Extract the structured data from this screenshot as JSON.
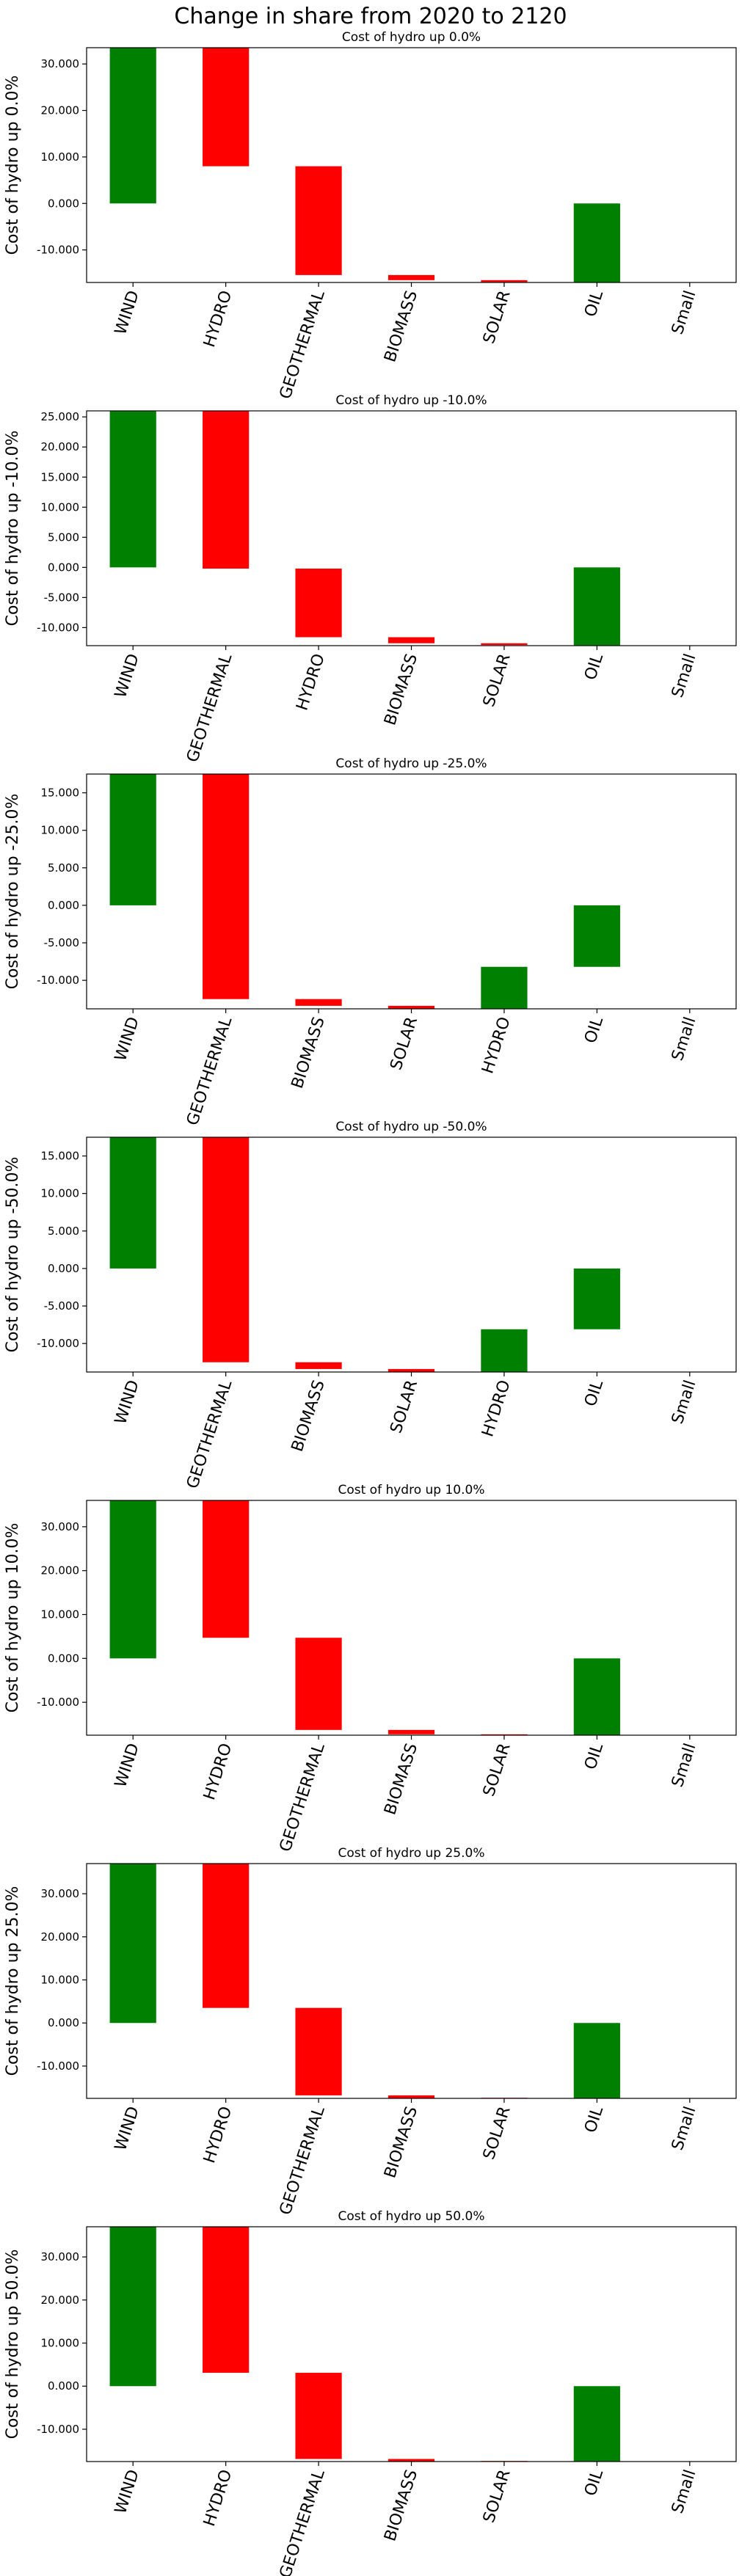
{
  "figure": {
    "suptitle": "Change in share from 2020 to 2120"
  },
  "colors": {
    "increase": "#008000",
    "decrease": "#ff0000"
  },
  "chart_data": [
    {
      "type": "bar",
      "title": "Cost of hydro up 0.0%",
      "ylabel": "Cost of hydro up 0.0%",
      "ylim": [
        -17000,
        33500
      ],
      "yticks": [
        -10000,
        0,
        10000,
        20000,
        30000
      ],
      "ytick_labels": [
        "-10.000",
        "0.000",
        "10.000",
        "20.000",
        "30.000"
      ],
      "categories": [
        "WIND",
        "HYDRO",
        "GEOTHERMAL",
        "BIOMASS",
        "SOLAR",
        "OIL",
        "Small"
      ],
      "bars": [
        {
          "bottom": 0,
          "top": 33500,
          "sign": "increase"
        },
        {
          "bottom": 8000,
          "top": 33500,
          "sign": "decrease"
        },
        {
          "bottom": -15400,
          "top": 8000,
          "sign": "decrease"
        },
        {
          "bottom": -16500,
          "top": -15400,
          "sign": "decrease"
        },
        {
          "bottom": -16900,
          "top": -16500,
          "sign": "decrease"
        },
        {
          "bottom": -17000,
          "top": 0,
          "sign": "increase"
        },
        null
      ]
    },
    {
      "type": "bar",
      "title": "Cost of hydro up -10.0%",
      "ylabel": "Cost of hydro up -10.0%",
      "ylim": [
        -13000,
        26000
      ],
      "yticks": [
        -10000,
        -5000,
        0,
        5000,
        10000,
        15000,
        20000,
        25000
      ],
      "ytick_labels": [
        "-10.000",
        "-5.000",
        "0.000",
        "5.000",
        "10.000",
        "15.000",
        "20.000",
        "25.000"
      ],
      "categories": [
        "WIND",
        "GEOTHERMAL",
        "HYDRO",
        "BIOMASS",
        "SOLAR",
        "OIL",
        "Small"
      ],
      "bars": [
        {
          "bottom": 0,
          "top": 26000,
          "sign": "increase"
        },
        {
          "bottom": -200,
          "top": 26000,
          "sign": "decrease"
        },
        {
          "bottom": -11600,
          "top": -200,
          "sign": "decrease"
        },
        {
          "bottom": -12600,
          "top": -11600,
          "sign": "decrease"
        },
        {
          "bottom": -12900,
          "top": -12600,
          "sign": "decrease"
        },
        {
          "bottom": -13000,
          "top": 0,
          "sign": "increase"
        },
        null
      ]
    },
    {
      "type": "bar",
      "title": "Cost of hydro up -25.0%",
      "ylabel": "Cost of hydro up -25.0%",
      "ylim": [
        -13800,
        17500
      ],
      "yticks": [
        -10000,
        -5000,
        0,
        5000,
        10000,
        15000
      ],
      "ytick_labels": [
        "-10.000",
        "-5.000",
        "0.000",
        "5.000",
        "10.000",
        "15.000"
      ],
      "categories": [
        "WIND",
        "GEOTHERMAL",
        "BIOMASS",
        "SOLAR",
        "HYDRO",
        "OIL",
        "Small"
      ],
      "bars": [
        {
          "bottom": 0,
          "top": 17500,
          "sign": "increase"
        },
        {
          "bottom": -12500,
          "top": 17500,
          "sign": "decrease"
        },
        {
          "bottom": -13400,
          "top": -12500,
          "sign": "decrease"
        },
        {
          "bottom": -13800,
          "top": -13400,
          "sign": "decrease"
        },
        {
          "bottom": -13800,
          "top": -8200,
          "sign": "increase"
        },
        {
          "bottom": -8200,
          "top": 0,
          "sign": "increase"
        },
        null
      ]
    },
    {
      "type": "bar",
      "title": "Cost of hydro up -50.0%",
      "ylabel": "Cost of hydro up -50.0%",
      "ylim": [
        -13800,
        17500
      ],
      "yticks": [
        -10000,
        -5000,
        0,
        5000,
        10000,
        15000
      ],
      "ytick_labels": [
        "-10.000",
        "-5.000",
        "0.000",
        "5.000",
        "10.000",
        "15.000"
      ],
      "categories": [
        "WIND",
        "GEOTHERMAL",
        "BIOMASS",
        "SOLAR",
        "HYDRO",
        "OIL",
        "Small"
      ],
      "bars": [
        {
          "bottom": 0,
          "top": 17500,
          "sign": "increase"
        },
        {
          "bottom": -12500,
          "top": 17500,
          "sign": "decrease"
        },
        {
          "bottom": -13400,
          "top": -12500,
          "sign": "decrease"
        },
        {
          "bottom": -13800,
          "top": -13400,
          "sign": "decrease"
        },
        {
          "bottom": -13800,
          "top": -8100,
          "sign": "increase"
        },
        {
          "bottom": -8100,
          "top": 0,
          "sign": "increase"
        },
        null
      ]
    },
    {
      "type": "bar",
      "title": "Cost of hydro up 10.0%",
      "ylabel": "Cost of hydro up 10.0%",
      "ylim": [
        -17500,
        36000
      ],
      "yticks": [
        -10000,
        0,
        10000,
        20000,
        30000
      ],
      "ytick_labels": [
        "-10.000",
        "0.000",
        "10.000",
        "20.000",
        "30.000"
      ],
      "categories": [
        "WIND",
        "HYDRO",
        "GEOTHERMAL",
        "BIOMASS",
        "SOLAR",
        "OIL",
        "Small"
      ],
      "bars": [
        {
          "bottom": 0,
          "top": 36000,
          "sign": "increase"
        },
        {
          "bottom": 4700,
          "top": 36000,
          "sign": "decrease"
        },
        {
          "bottom": -16300,
          "top": 4700,
          "sign": "decrease"
        },
        {
          "bottom": -17300,
          "top": -16300,
          "sign": "decrease"
        },
        {
          "bottom": -17500,
          "top": -17300,
          "sign": "decrease"
        },
        {
          "bottom": -17500,
          "top": 0,
          "sign": "increase"
        },
        null
      ]
    },
    {
      "type": "bar",
      "title": "Cost of hydro up 25.0%",
      "ylabel": "Cost of hydro up 25.0%",
      "ylim": [
        -17500,
        37000
      ],
      "yticks": [
        -10000,
        0,
        10000,
        20000,
        30000
      ],
      "ytick_labels": [
        "-10.000",
        "0.000",
        "10.000",
        "20.000",
        "30.000"
      ],
      "categories": [
        "WIND",
        "HYDRO",
        "GEOTHERMAL",
        "BIOMASS",
        "SOLAR",
        "OIL",
        "Small"
      ],
      "bars": [
        {
          "bottom": 0,
          "top": 37000,
          "sign": "increase"
        },
        {
          "bottom": 3500,
          "top": 37000,
          "sign": "decrease"
        },
        {
          "bottom": -16800,
          "top": 3500,
          "sign": "decrease"
        },
        {
          "bottom": -17500,
          "top": -16800,
          "sign": "decrease"
        },
        {
          "bottom": -17500,
          "top": -17500,
          "sign": "decrease"
        },
        {
          "bottom": -17500,
          "top": 0,
          "sign": "increase"
        },
        null
      ]
    },
    {
      "type": "bar",
      "title": "Cost of hydro up 50.0%",
      "ylabel": "Cost of hydro up 50.0%",
      "ylim": [
        -17500,
        37000
      ],
      "yticks": [
        -10000,
        0,
        10000,
        20000,
        30000
      ],
      "ytick_labels": [
        "-10.000",
        "0.000",
        "10.000",
        "20.000",
        "30.000"
      ],
      "categories": [
        "WIND",
        "HYDRO",
        "GEOTHERMAL",
        "BIOMASS",
        "SOLAR",
        "OIL",
        "Small"
      ],
      "bars": [
        {
          "bottom": 0,
          "top": 37000,
          "sign": "increase"
        },
        {
          "bottom": 3100,
          "top": 37000,
          "sign": "decrease"
        },
        {
          "bottom": -16900,
          "top": 3100,
          "sign": "decrease"
        },
        {
          "bottom": -17500,
          "top": -16900,
          "sign": "decrease"
        },
        {
          "bottom": -17500,
          "top": -17500,
          "sign": "decrease"
        },
        {
          "bottom": -17500,
          "top": 0,
          "sign": "increase"
        },
        null
      ]
    }
  ]
}
